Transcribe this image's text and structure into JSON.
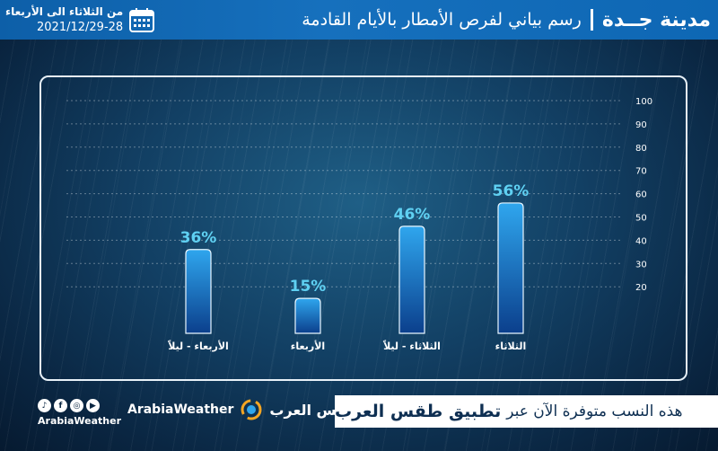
{
  "header": {
    "city": "مدينة جــدة",
    "title": "رسم بياني لفرص الأمطار بالأيام القادمة",
    "date_range": "من الثلاثاء  الى الأربعاء",
    "date": "2021/12/29-28"
  },
  "chart_data": {
    "type": "bar",
    "categories": [
      "الثلاثاء",
      "الثلاثاء - ليلاً",
      "الأربعاء",
      "الأربعاء - ليلاً"
    ],
    "values": [
      56,
      46,
      15,
      36
    ],
    "value_labels": [
      "56%",
      "46%",
      "15%",
      "36%"
    ],
    "ylim": [
      0,
      100
    ],
    "yticks": [
      20,
      30,
      40,
      50,
      60,
      70,
      80,
      90,
      100
    ],
    "grid": true
  },
  "footer": {
    "cta_text": "هذه النسب متوفرة الآن عبر",
    "cta_app": "تطبيق طقس العرب",
    "brand_ar": "طقس العرب",
    "brand_en": "ArabiaWeather",
    "social_handle": "ArabiaWeather",
    "social_icons": [
      "tiktok-icon",
      "facebook-icon",
      "instagram-icon",
      "youtube-icon"
    ]
  },
  "colors": {
    "header_bg": "#1670bd",
    "bar_top": "#2fa6ee",
    "bar_bottom": "#0b3f8c",
    "value_label": "#5fd0f2"
  }
}
